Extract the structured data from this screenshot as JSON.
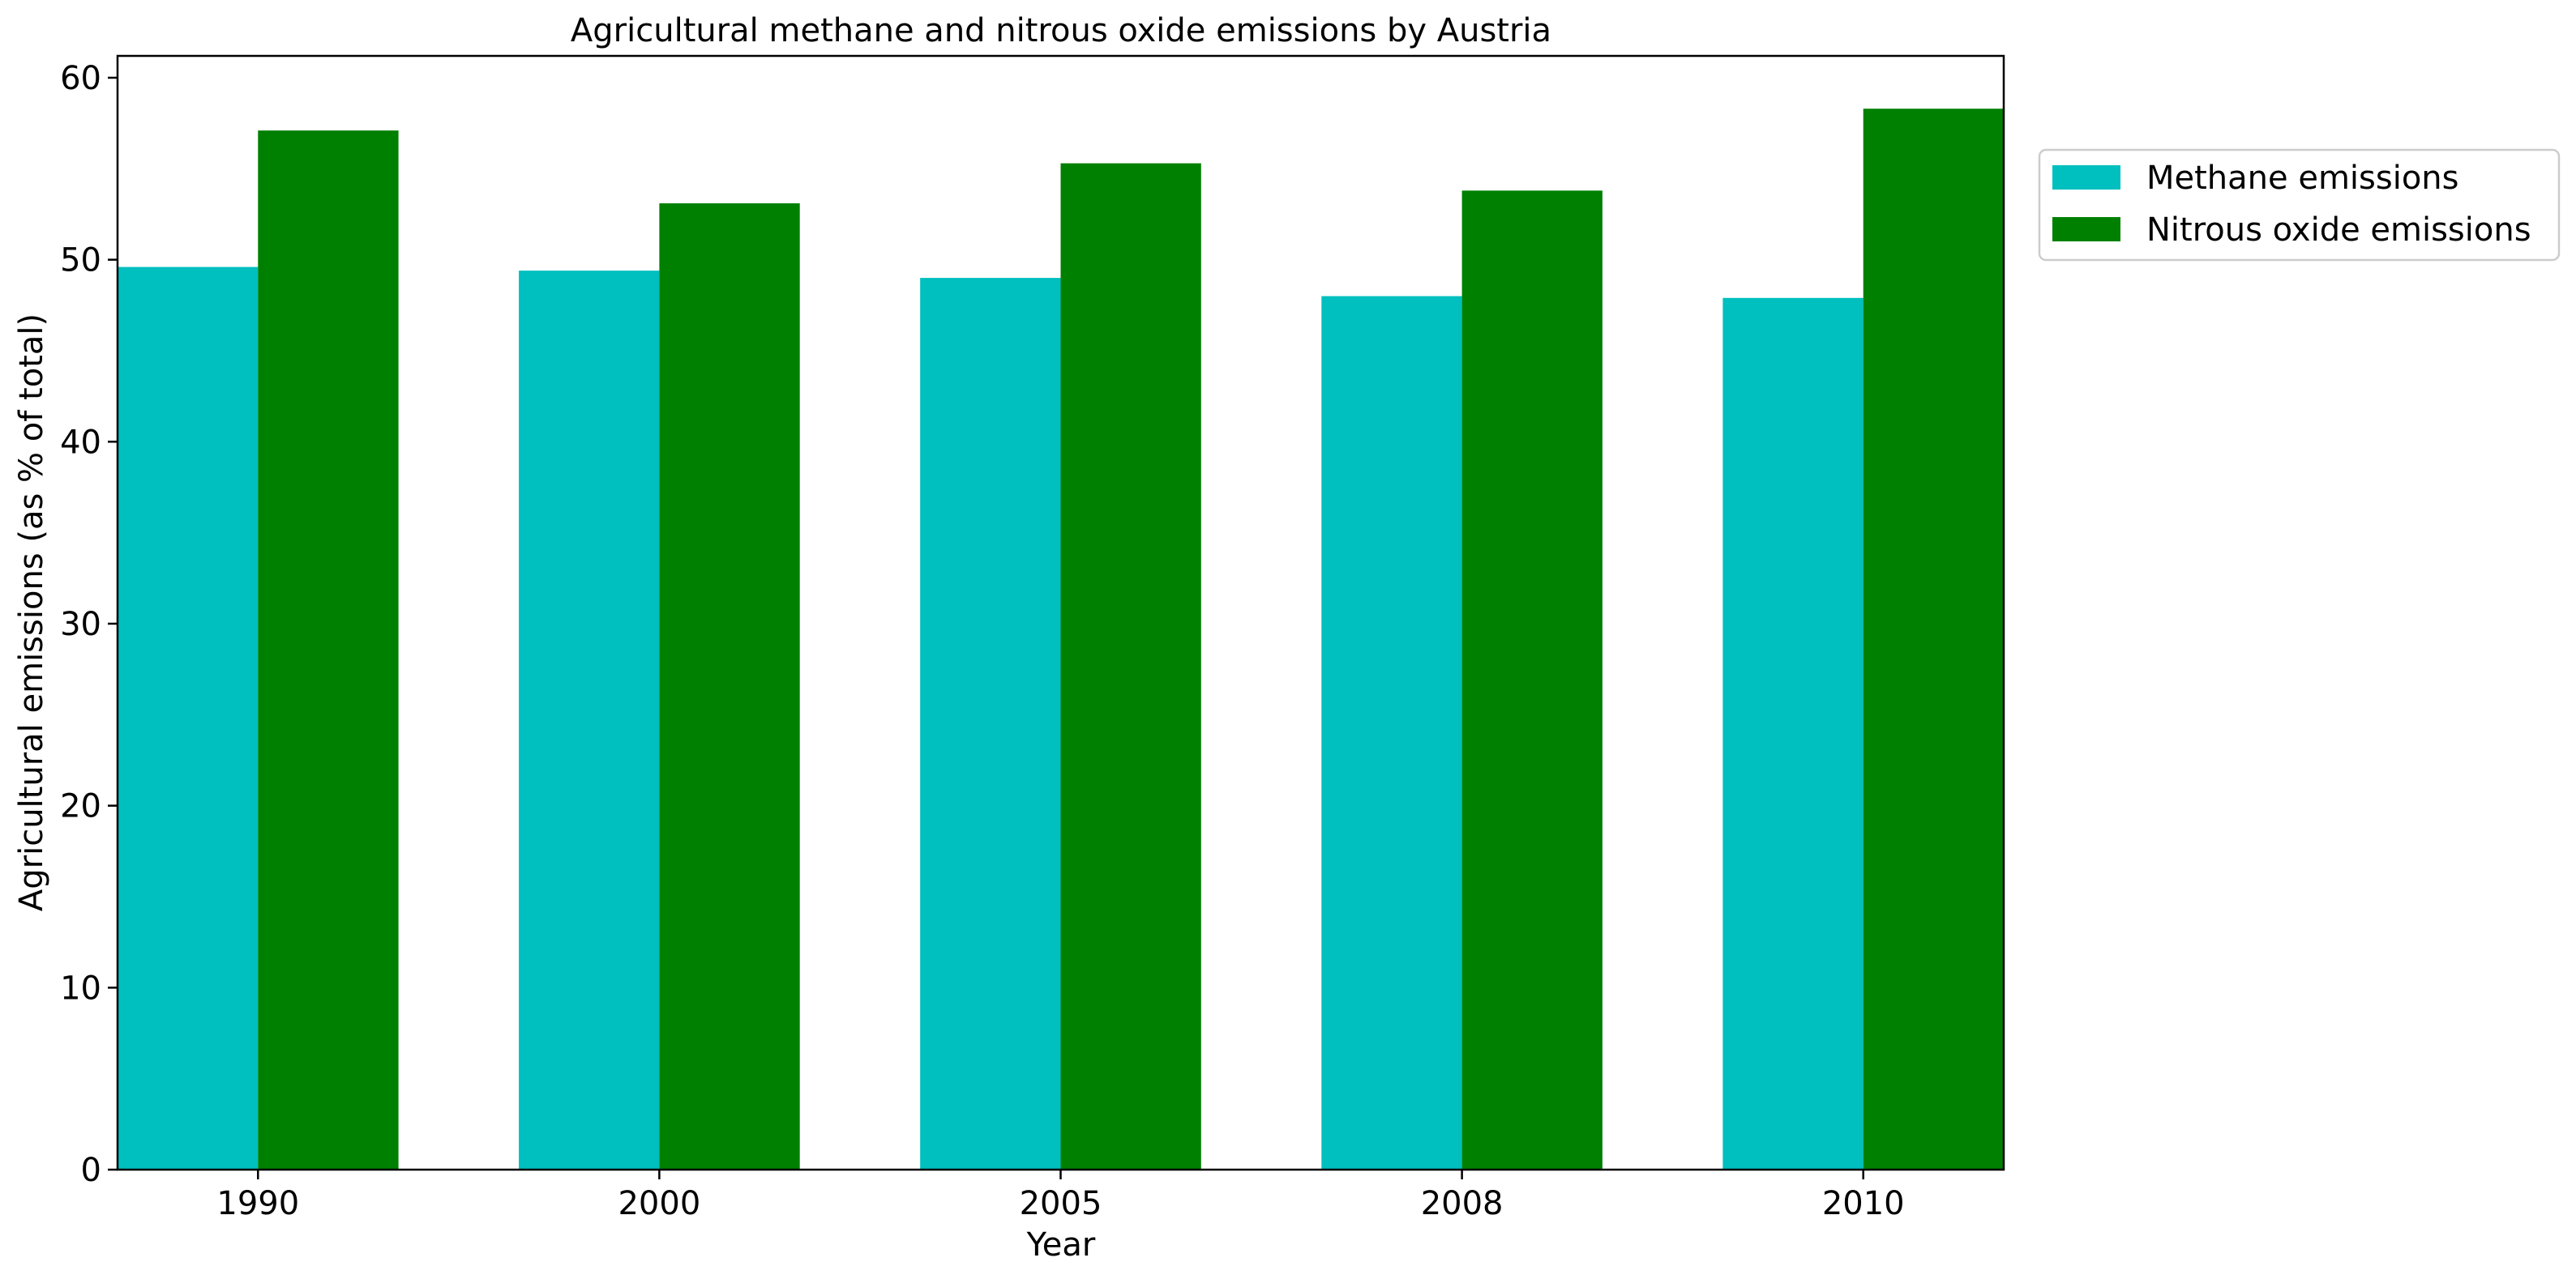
{
  "chart_data": {
    "type": "bar",
    "title": "Agricultural methane and nitrous oxide emissions by Austria",
    "xlabel": "Year",
    "ylabel": "Agricultural emissions (as % of total)",
    "categories": [
      "1990",
      "2000",
      "2005",
      "2008",
      "2010"
    ],
    "series": [
      {
        "name": "Methane emissions",
        "color": "#00bfbf",
        "values": [
          49.6,
          49.4,
          49.0,
          48.0,
          47.9
        ]
      },
      {
        "name": "Nitrous oxide emissions",
        "color": "#008000",
        "values": [
          57.1,
          53.1,
          55.3,
          53.8,
          58.3
        ]
      }
    ],
    "ylim": [
      0,
      61.2
    ],
    "yticks": [
      0,
      10,
      20,
      30,
      40,
      50,
      60
    ],
    "grid": false,
    "legend_position": "outside-top-right"
  }
}
